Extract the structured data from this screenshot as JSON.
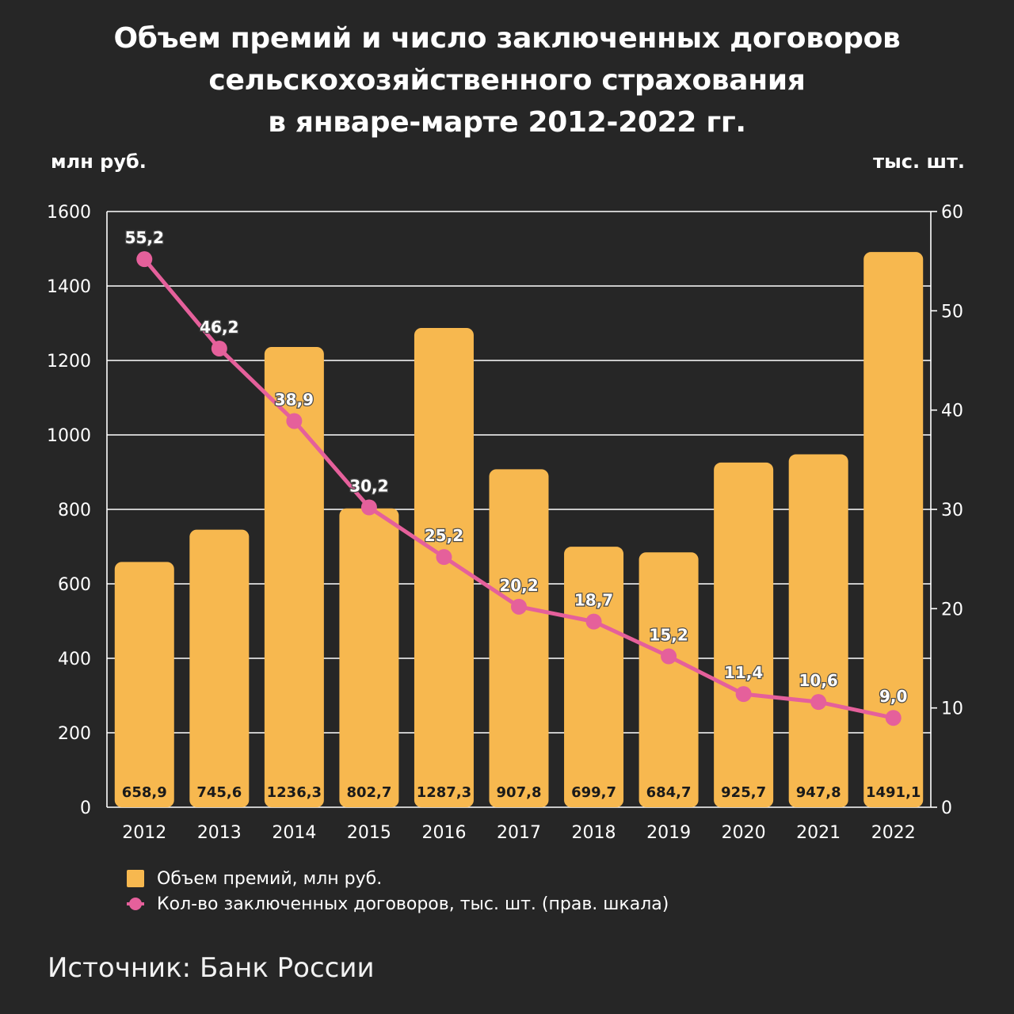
{
  "title_lines": [
    "Объем премий и число заключенных договоров",
    "сельскохозяйственного страхования",
    "в январе-марте 2012-2022 гг."
  ],
  "left_axis_unit": "млн руб.",
  "right_axis_unit": "тыс. шт.",
  "legend": {
    "bars": "Объем премий, млн  руб.",
    "line": "Кол-во заключенных договоров, тыс. шт. (прав. шкала)"
  },
  "source": "Источник: Банк России",
  "colors": {
    "bar": "#f7b84f",
    "line": "#e5609b",
    "grid": "#ffffff",
    "background": "#262626"
  },
  "chart_data": {
    "type": "bar",
    "categories": [
      "2012",
      "2013",
      "2014",
      "2015",
      "2016",
      "2017",
      "2018",
      "2019",
      "2020",
      "2021",
      "2022"
    ],
    "series": [
      {
        "name": "Объем премий, млн  руб.",
        "type": "bar",
        "axis": "left",
        "values": [
          658.9,
          745.6,
          1236.3,
          802.7,
          1287.3,
          907.8,
          699.7,
          684.7,
          925.7,
          947.8,
          1491.1
        ],
        "labels": [
          "658,9",
          "745,6",
          "1236,3",
          "802,7",
          "1287,3",
          "907,8",
          "699,7",
          "684,7",
          "925,7",
          "947,8",
          "1491,1"
        ]
      },
      {
        "name": "Кол-во заключенных договоров, тыс. шт. (прав. шкала)",
        "type": "line",
        "axis": "right",
        "values": [
          55.2,
          46.2,
          38.9,
          30.2,
          25.2,
          20.2,
          18.7,
          15.2,
          11.4,
          10.6,
          9.0
        ],
        "labels": [
          "55,2",
          "46,2",
          "38,9",
          "30,2",
          "25,2",
          "20,2",
          "18,7",
          "15,2",
          "11,4",
          "10,6",
          "9,0"
        ]
      }
    ],
    "y_left": {
      "lim": [
        0,
        1600
      ],
      "ticks": [
        0,
        200,
        400,
        600,
        800,
        1000,
        1200,
        1400,
        1600
      ]
    },
    "y_right": {
      "lim": [
        0,
        60
      ],
      "ticks": [
        0,
        10,
        20,
        30,
        40,
        50,
        60
      ]
    },
    "grid": true,
    "legend_position": "bottom-left"
  }
}
